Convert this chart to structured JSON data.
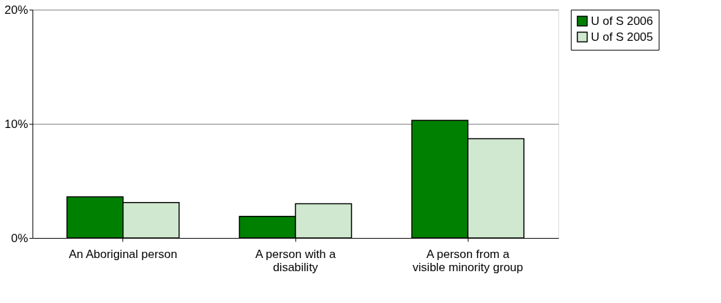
{
  "chart_data": {
    "type": "bar",
    "categories": [
      "An Aboriginal person",
      "A person with a disability",
      "A person from a visible minority group"
    ],
    "series": [
      {
        "name": "U of S 2006",
        "color": "#008000",
        "values": [
          3.6,
          1.9,
          10.3
        ]
      },
      {
        "name": "U of S 2005",
        "color": "#cfe8cf",
        "values": [
          3.1,
          3.0,
          8.7
        ]
      }
    ],
    "ylim": [
      0,
      20
    ],
    "yticks": [
      {
        "value": 0,
        "label": "0%"
      },
      {
        "value": 10,
        "label": "10%"
      },
      {
        "value": 20,
        "label": "20%"
      }
    ],
    "grid": "y",
    "legend": "right"
  }
}
